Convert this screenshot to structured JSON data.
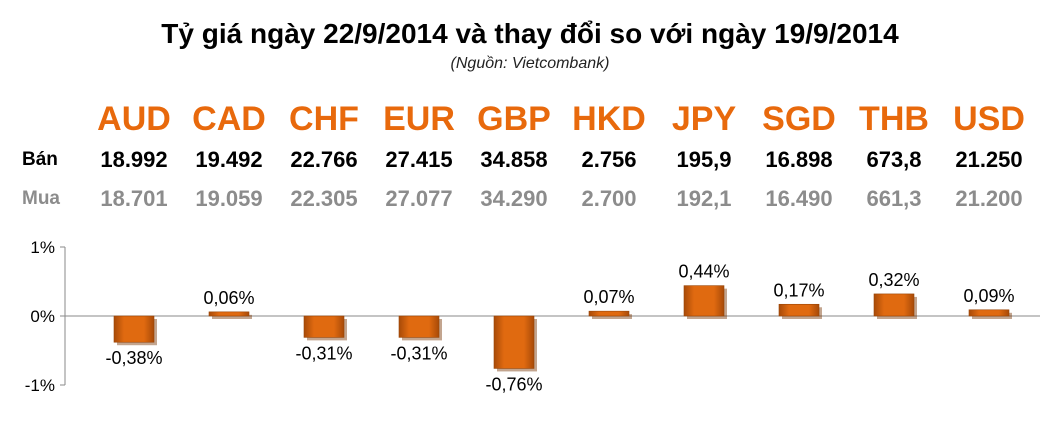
{
  "title": "Tỷ giá ngày 22/9/2014 và thay đổi so với ngày 19/9/2014",
  "source": "(Nguồn: Vietcombank)",
  "row_labels": {
    "sell": "Bán",
    "buy": "Mua"
  },
  "currencies": [
    {
      "code": "AUD",
      "sell": "18.992",
      "buy": "18.701"
    },
    {
      "code": "CAD",
      "sell": "19.492",
      "buy": "19.059"
    },
    {
      "code": "CHF",
      "sell": "22.766",
      "buy": "22.305"
    },
    {
      "code": "EUR",
      "sell": "27.415",
      "buy": "27.077"
    },
    {
      "code": "GBP",
      "sell": "34.858",
      "buy": "34.290"
    },
    {
      "code": "HKD",
      "sell": "2.756",
      "buy": "2.700"
    },
    {
      "code": "JPY",
      "sell": "195,9",
      "buy": "192,1"
    },
    {
      "code": "SGD",
      "sell": "16.898",
      "buy": "16.490"
    },
    {
      "code": "THB",
      "sell": "673,8",
      "buy": "661,3"
    },
    {
      "code": "USD",
      "sell": "21.250",
      "buy": "21.200"
    }
  ],
  "colors": {
    "accent": "#e8690c",
    "bar": "#e06a10",
    "bar_dark": "#a84a08",
    "buy_text": "#8c8c8c"
  },
  "chart_data": {
    "type": "bar",
    "categories": [
      "AUD",
      "CAD",
      "CHF",
      "EUR",
      "GBP",
      "HKD",
      "JPY",
      "SGD",
      "THB",
      "USD"
    ],
    "values": [
      -0.38,
      0.06,
      -0.31,
      -0.31,
      -0.76,
      0.07,
      0.44,
      0.17,
      0.32,
      0.09
    ],
    "data_labels": [
      "-0,38%",
      "0,06%",
      "-0,31%",
      "-0,31%",
      "-0,76%",
      "0,07%",
      "0,44%",
      "0,17%",
      "0,32%",
      "0,09%"
    ],
    "y_ticks": [
      1,
      0,
      -1
    ],
    "y_tick_labels": [
      "1%",
      "0%",
      "-1%"
    ],
    "ylim": [
      -1,
      1
    ],
    "grid": false,
    "legend": "none"
  }
}
